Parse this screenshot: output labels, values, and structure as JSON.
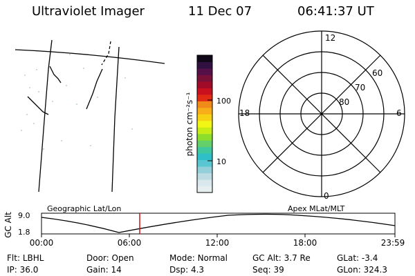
{
  "header": {
    "instrument": "Ultraviolet Imager",
    "date": "11 Dec 07",
    "time": "06:41:37 UT"
  },
  "colorbar": {
    "unit_label": "photon cm⁻²s⁻¹",
    "tick_labels": [
      "100",
      "10"
    ],
    "colors": [
      "#e6eef0",
      "#d8e8ec",
      "#bcdbe2",
      "#93cfd9",
      "#59c7d2",
      "#2fbfc8",
      "#3fc8a0",
      "#63d06a",
      "#8dde2c",
      "#c7ec16",
      "#f2f614",
      "#f7d214",
      "#f7ae18",
      "#f08a18",
      "#e02a14",
      "#c8101e",
      "#a00c28",
      "#781038",
      "#55104a",
      "#301040",
      "#100818"
    ]
  },
  "polar_plot": {
    "mlt_labels": {
      "top": "12",
      "bottom": "0",
      "left": "18",
      "right": "6"
    },
    "lat_labels": [
      "60",
      "70",
      "80"
    ]
  },
  "timeline": {
    "label_left": "Geographic Lat/Lon",
    "label_right": "Apex MLat/MLT",
    "y_axis_label": "GC Alt",
    "y_ticks": [
      "9.0",
      "1.8"
    ],
    "x_ticks": [
      "00:00",
      "06:00",
      "12:00",
      "18:00",
      "23:59"
    ],
    "marker_color": "#d01010"
  },
  "info_grid": [
    {
      "label": "Flt:",
      "value": "LBHL"
    },
    {
      "label": "Door:",
      "value": "Open"
    },
    {
      "label": "Mode:",
      "value": "Normal"
    },
    {
      "label": "GC Alt:",
      "value": "3.7 Re"
    },
    {
      "label": "GLat:",
      "value": "-3.4"
    },
    {
      "label": "IP:",
      "value": "36.0"
    },
    {
      "label": "Gain:",
      "value": "14"
    },
    {
      "label": "Dsp:",
      "value": "4.3"
    },
    {
      "label": "Seq:",
      "value": "39"
    },
    {
      "label": "GLon:",
      "value": "324.3"
    }
  ]
}
